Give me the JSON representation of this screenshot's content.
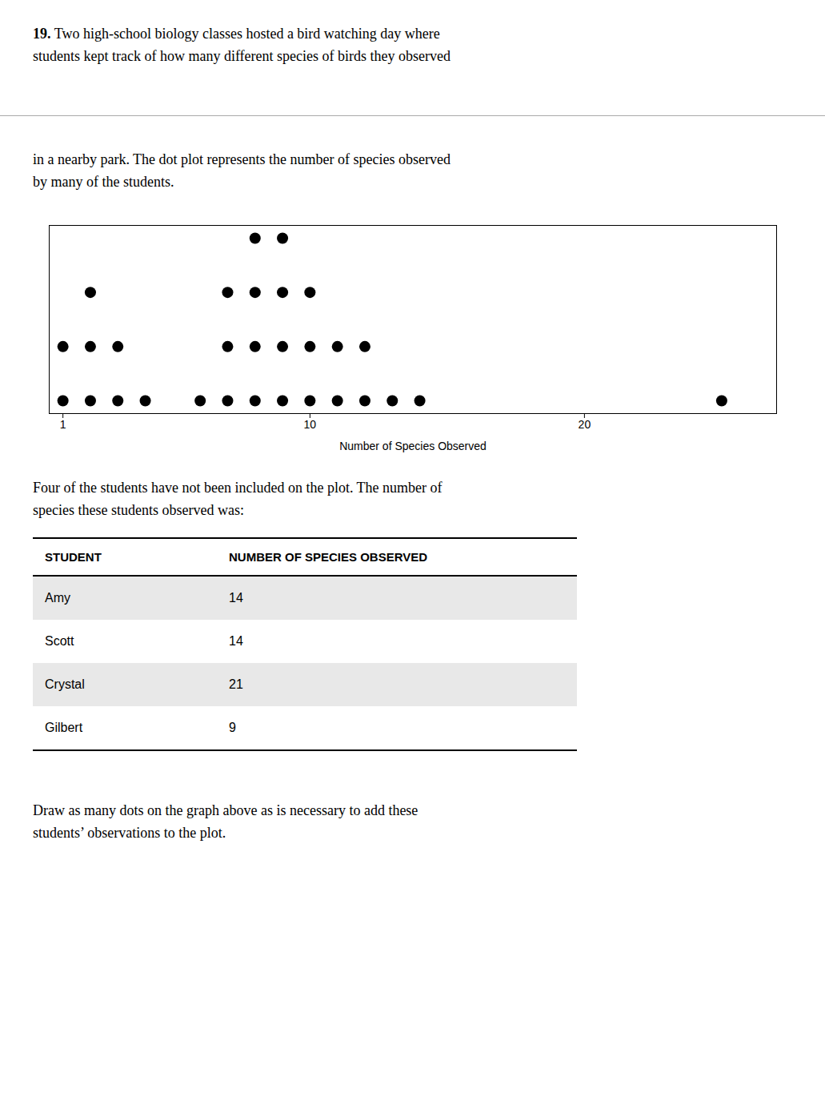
{
  "chart_data": {
    "type": "dot",
    "annotations": {
      "above": [
        [
          "19. Two high-school biology classes hosted a bird watching day where",
          "students kept track of how many different species of birds they observed"
        ],
        [
          "in a nearby park. The dot plot represents the number of species observed",
          "by many of the students."
        ]
      ],
      "below": [
        "Four of the students have not been included on the plot. The number of",
        "species these students observed was:"
      ],
      "end": [
        "Draw as many dots on the graph above as is necessary to add these",
        "students’ observations to the plot."
      ]
    },
    "x": [
      1,
      2,
      3,
      4,
      6,
      7,
      8,
      9,
      10,
      11,
      12,
      13,
      14,
      25
    ],
    "values": [
      2,
      3,
      2,
      1,
      1,
      3,
      4,
      4,
      3,
      2,
      2,
      1,
      1,
      1
    ],
    "color": "#000000",
    "xlabel": "Number of Species Observed",
    "xlim": [
      0.5,
      27
    ],
    "xticks": [
      1,
      10,
      20
    ],
    "tick_labels": "x",
    "table": {
      "columns": [
        "STUDENT",
        "NUMBER OF SPECIES OBSERVED"
      ],
      "rows": [
        [
          "Amy",
          14
        ],
        [
          "Scott",
          14
        ],
        [
          "Crystal",
          21
        ],
        [
          "Gilbert",
          9
        ]
      ]
    }
  }
}
